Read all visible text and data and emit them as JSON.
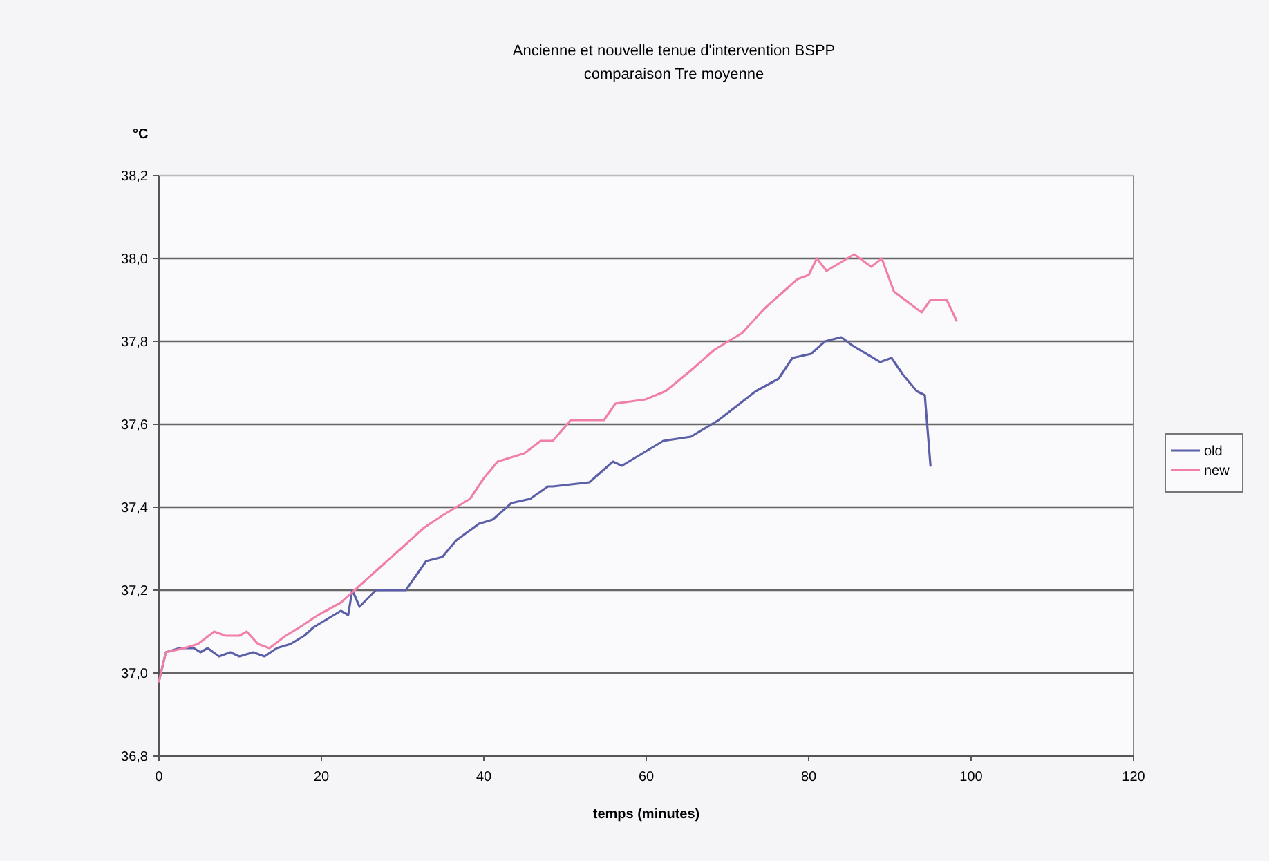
{
  "chart_data": {
    "type": "line",
    "title": "Ancienne et nouvelle tenue d'intervention BSPP",
    "subtitle": "comparaison Tre moyenne",
    "ylabel": "°C",
    "xlabel": "temps (minutes)",
    "xlim": [
      0,
      120
    ],
    "xticks": [
      0,
      20,
      40,
      60,
      80,
      100,
      120
    ],
    "ylim": [
      36.8,
      38.2
    ],
    "yticks": [
      {
        "value": 36.8,
        "label": "36,8"
      },
      {
        "value": 37.0,
        "label": "37,0"
      },
      {
        "value": 37.2,
        "label": "37,2"
      },
      {
        "value": 37.4,
        "label": "37,4"
      },
      {
        "value": 37.6,
        "label": "37,6"
      },
      {
        "value": 37.8,
        "label": "37,8"
      },
      {
        "value": 38.0,
        "label": "38,0"
      },
      {
        "value": 38.2,
        "label": "38,2"
      }
    ],
    "grid": "y",
    "legend": "right",
    "marker": "none",
    "line_style": "solid",
    "series": [
      {
        "name": "old",
        "color": "#5b5fa8",
        "x": [
          0,
          0.85,
          2.55,
          4.3,
          5.1,
          6,
          7.4,
          8.8,
          9.9,
          11.6,
          13,
          14.5,
          16.2,
          17.9,
          19,
          20.7,
          22.4,
          23.3,
          23.8,
          24.7,
          26.7,
          30.4,
          32.9,
          34.9,
          36.6,
          39.4,
          41.1,
          43.4,
          45.7,
          47.9,
          48.5,
          53,
          55.9,
          57,
          62.1,
          65.5,
          68.9,
          73.5,
          76.3,
          78,
          80.3,
          82,
          84,
          85.4,
          88.8,
          90.2,
          91.6,
          93.3,
          94.3,
          95
        ],
        "values": [
          36.98,
          37.05,
          37.06,
          37.06,
          37.05,
          37.06,
          37.04,
          37.05,
          37.04,
          37.05,
          37.04,
          37.06,
          37.07,
          37.09,
          37.11,
          37.13,
          37.15,
          37.14,
          37.2,
          37.16,
          37.2,
          37.2,
          37.27,
          37.28,
          37.32,
          37.36,
          37.37,
          37.41,
          37.42,
          37.45,
          37.45,
          37.46,
          37.51,
          37.5,
          37.56,
          37.57,
          37.61,
          37.68,
          37.71,
          37.76,
          37.77,
          37.8,
          37.81,
          37.79,
          37.75,
          37.76,
          37.72,
          37.68,
          37.67,
          37.5
        ]
      },
      {
        "name": "new",
        "color": "#f080a8",
        "x": [
          0,
          0.85,
          3.1,
          4.8,
          6.8,
          8.2,
          9.9,
          10.8,
          12.2,
          13.6,
          15.6,
          17.3,
          19.6,
          22.4,
          24.1,
          25.8,
          27.5,
          29.8,
          32.6,
          34.9,
          36.6,
          38.3,
          40,
          41.7,
          45,
          47,
          48.5,
          50.7,
          54.8,
          56.2,
          59.9,
          62.4,
          65.5,
          68.4,
          71.8,
          74.6,
          78.6,
          80,
          81,
          82.2,
          85.6,
          87.7,
          89,
          90.5,
          93.9,
          95,
          97,
          98.2
        ],
        "values": [
          36.98,
          37.05,
          37.06,
          37.07,
          37.1,
          37.09,
          37.09,
          37.1,
          37.07,
          37.06,
          37.09,
          37.11,
          37.14,
          37.17,
          37.2,
          37.23,
          37.26,
          37.3,
          37.35,
          37.38,
          37.4,
          37.42,
          37.47,
          37.51,
          37.53,
          37.56,
          37.56,
          37.61,
          37.61,
          37.65,
          37.66,
          37.68,
          37.73,
          37.78,
          37.82,
          37.88,
          37.95,
          37.96,
          38.0,
          37.97,
          38.01,
          37.98,
          38.0,
          37.92,
          37.87,
          37.9,
          37.9,
          37.85
        ]
      }
    ]
  }
}
